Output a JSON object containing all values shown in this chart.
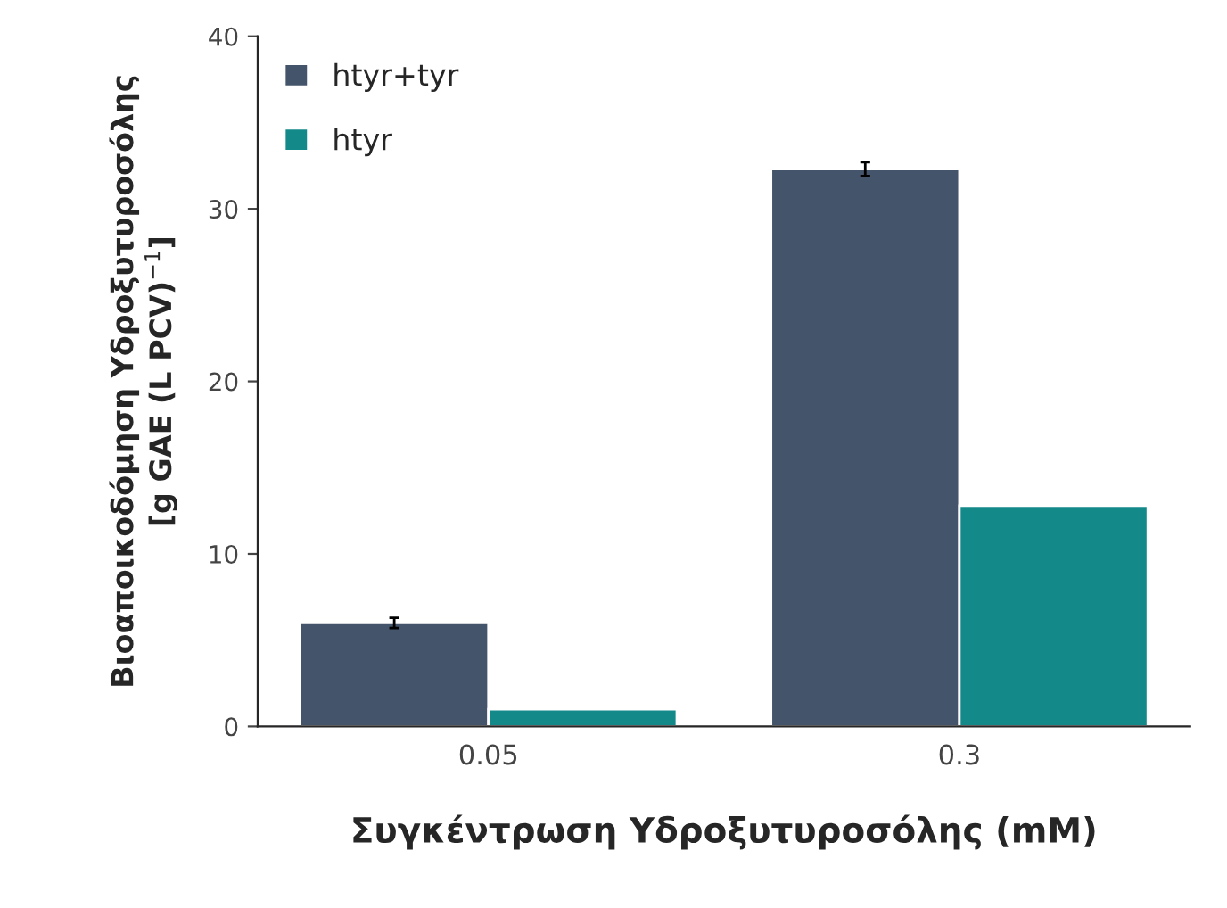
{
  "chart_data": {
    "type": "bar",
    "xlabel": "Συγκέντρωση Υδροξυτυροσόλης (mM)",
    "ylabel": "Βιοαποικοδόμηση Υδροξυτυροσόλης\n[g GAE (L PCV)$^{−1}$]",
    "categories": [
      "0.05",
      "0.3"
    ],
    "series": [
      {
        "name": "htyr+tyr",
        "color": "#44546a",
        "values": [
          6.0,
          32.3
        ],
        "errors": [
          0.3,
          0.4
        ]
      },
      {
        "name": "htyr",
        "color": "#13898a",
        "values": [
          1.0,
          12.8
        ]
      }
    ],
    "ylim": [
      0,
      40
    ],
    "yticks": [
      0,
      10,
      20,
      30,
      40
    ],
    "grid": false,
    "legend": "top left"
  }
}
